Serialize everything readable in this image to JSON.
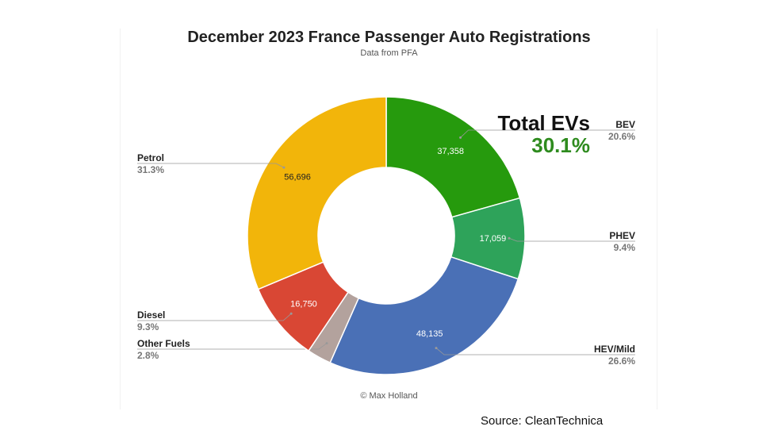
{
  "header": {
    "title": "December 2023 France Passenger Auto Registrations",
    "subtitle": "Data from PFA"
  },
  "callout": {
    "label": "Total EVs",
    "value": "30.1%",
    "value_color": "#2e8b1e"
  },
  "footer": {
    "copyright": "© Max Holland",
    "source": "Source: CleanTechnica"
  },
  "chart_data": {
    "type": "pie",
    "donut": true,
    "title": "December 2023 France Passenger Auto Registrations",
    "subtitle": "Data from PFA",
    "slices": [
      {
        "name": "BEV",
        "value": 37358,
        "value_label": "37,358",
        "percent_label": "20.6%",
        "color": "#269a0d",
        "label_side": "right"
      },
      {
        "name": "PHEV",
        "value": 17059,
        "value_label": "17,059",
        "percent_label": "9.4%",
        "color": "#2ea35a",
        "label_side": "right"
      },
      {
        "name": "HEV/Mild",
        "value": 48135,
        "value_label": "48,135",
        "percent_label": "26.6%",
        "color": "#4a70b6",
        "label_side": "right"
      },
      {
        "name": "Other Fuels",
        "value": 5100,
        "value_label": "",
        "percent_label": "2.8%",
        "color": "#b3a29d",
        "label_side": "left"
      },
      {
        "name": "Diesel",
        "value": 16750,
        "value_label": "16,750",
        "percent_label": "9.3%",
        "color": "#d94734",
        "label_side": "left"
      },
      {
        "name": "Petrol",
        "value": 56696,
        "value_label": "56,696",
        "percent_label": "31.3%",
        "color": "#f2b50a",
        "label_side": "left"
      }
    ]
  }
}
